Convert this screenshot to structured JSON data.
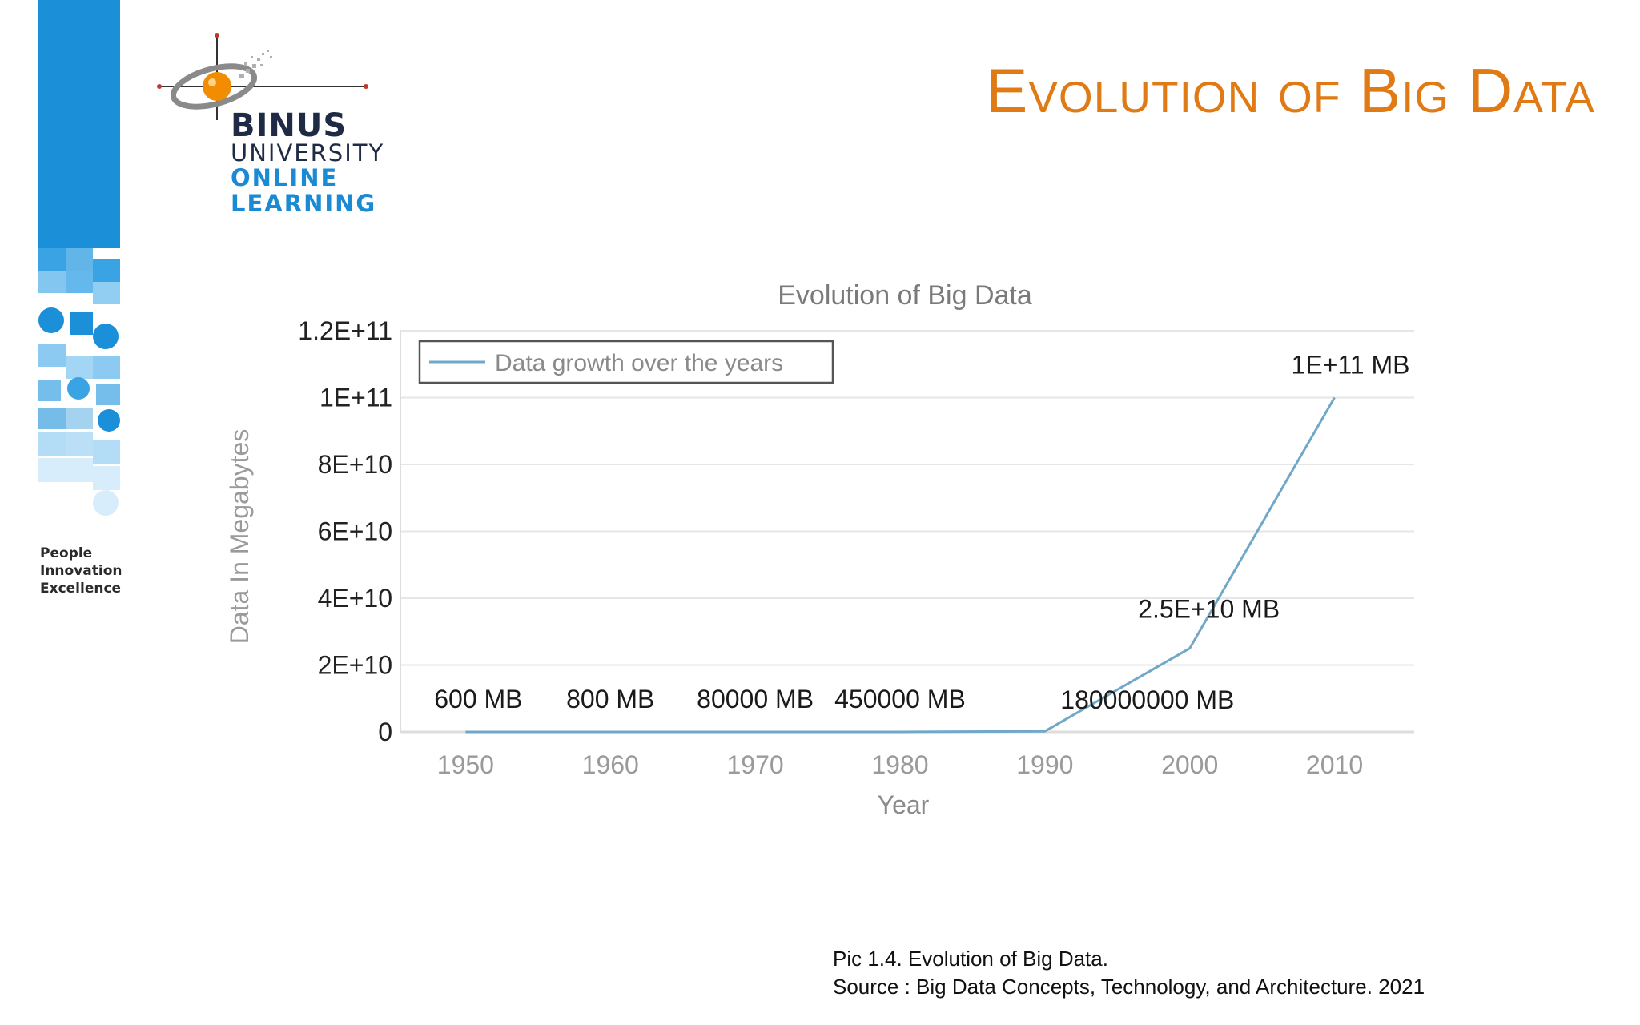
{
  "slide": {
    "title": "Evolution of Big Data",
    "tagline": [
      "People",
      "Innovation",
      "Excellence"
    ]
  },
  "logo": {
    "line1": "BINUS",
    "line2": "UNIVERSITY",
    "line3": "ONLINE",
    "line4": "LEARNING"
  },
  "colors": {
    "accent_orange": "#e07a14",
    "brand_blue": "#1b8fd8",
    "series_line": "#6fa8c8",
    "logo_dark": "#1f2a44"
  },
  "chart_data": {
    "type": "line",
    "title": "Evolution of Big Data",
    "xlabel": "Year",
    "ylabel": "Data In Megabytes",
    "x": [
      1950,
      1960,
      1970,
      1980,
      1990,
      2000,
      2010
    ],
    "xticks": [
      "1950",
      "1960",
      "1970",
      "1980",
      "1990",
      "2000",
      "2010"
    ],
    "yticks": [
      "0",
      "2E+10",
      "4E+10",
      "6E+10",
      "8E+10",
      "1E+11",
      "1.2E+11"
    ],
    "ylim": [
      0,
      120000000000
    ],
    "series": [
      {
        "name": "Data growth over the years",
        "values": [
          600,
          800,
          80000,
          450000,
          180000000,
          25000000000,
          100000000000
        ]
      }
    ],
    "data_labels": [
      "600 MB",
      "800 MB",
      "80000 MB",
      "450000 MB",
      "180000000 MB",
      "2.5E+10 MB",
      "1E+11 MB"
    ],
    "legend": "top-left",
    "grid": true
  },
  "caption": {
    "line1": "Pic 1.4. Evolution of Big Data.",
    "line2": "Source : Big Data Concepts, Technology, and Architecture. 2021"
  }
}
